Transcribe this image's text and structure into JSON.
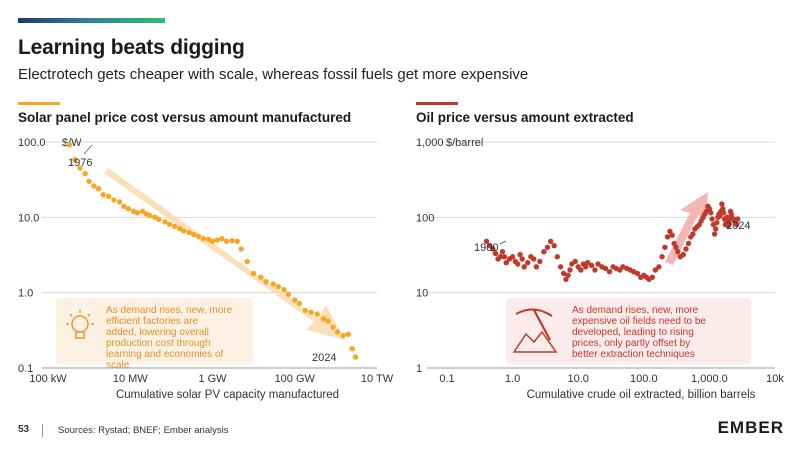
{
  "header": {
    "title": "Learning beats digging",
    "subtitle": "Electrotech gets cheaper with scale, whereas fossil fuels get more expensive"
  },
  "footer": {
    "page_number": "53",
    "sources": "Sources: Rystad; BNEF; Ember analysis",
    "logo": "EMBER"
  },
  "colors": {
    "solar": "#f5a623",
    "solar_arrow": "#f8d7a4",
    "oil": "#c0392b",
    "oil_arrow": "#f0a4a0",
    "callout_bg": "#fdf1e4",
    "callout_oil_bg": "#fbeceb"
  },
  "icons": {
    "solar_callout": "lightbulb-icon",
    "oil_callout": "pickaxe-icon"
  },
  "chart_data": [
    {
      "type": "scatter",
      "title": "Solar panel price cost versus amount manufactured",
      "xlabel": "Cumulative solar PV capacity manufactured",
      "ylabel": "$/W",
      "x_scale": "log",
      "y_scale": "log",
      "xlim_gw": [
        0.0001,
        10000
      ],
      "ylim": [
        0.1,
        100
      ],
      "x_ticks": [
        0.0001,
        0.01,
        1,
        100,
        10000
      ],
      "x_tick_labels": [
        "100 kW",
        "10 MW",
        "1 GW",
        "100 GW",
        "10 TW"
      ],
      "y_ticks": [
        0.1,
        1,
        10,
        100
      ],
      "y_tick_labels": [
        "0.1",
        "1.0",
        "10.0",
        "100.0"
      ],
      "grid": "horizontal",
      "annotations": [
        "1976",
        "2024"
      ],
      "callout": "As demand rises, new, more efficient factories are added, lowering overall production cost through learning and economies of scale",
      "points_gw_usdw": [
        [
          0.00033,
          92
        ],
        [
          0.00045,
          58
        ],
        [
          0.0006,
          45
        ],
        [
          0.0008,
          38
        ],
        [
          0.001,
          30
        ],
        [
          0.0013,
          26
        ],
        [
          0.0017,
          24
        ],
        [
          0.0022,
          20
        ],
        [
          0.003,
          19
        ],
        [
          0.004,
          17
        ],
        [
          0.0055,
          16
        ],
        [
          0.007,
          14
        ],
        [
          0.009,
          13
        ],
        [
          0.012,
          12
        ],
        [
          0.015,
          11.5
        ],
        [
          0.02,
          12
        ],
        [
          0.025,
          11
        ],
        [
          0.03,
          10.5
        ],
        [
          0.04,
          10
        ],
        [
          0.05,
          9.4
        ],
        [
          0.07,
          8.7
        ],
        [
          0.09,
          8.1
        ],
        [
          0.12,
          7.6
        ],
        [
          0.16,
          7.1
        ],
        [
          0.2,
          6.6
        ],
        [
          0.27,
          6.3
        ],
        [
          0.35,
          5.9
        ],
        [
          0.45,
          5.6
        ],
        [
          0.6,
          5.2
        ],
        [
          0.8,
          5.1
        ],
        [
          1.0,
          4.8
        ],
        [
          1.3,
          5.0
        ],
        [
          1.7,
          5.2
        ],
        [
          2.2,
          4.8
        ],
        [
          3.0,
          4.9
        ],
        [
          4.0,
          4.8
        ],
        [
          5.0,
          3.8
        ],
        [
          7.0,
          2.6
        ],
        [
          10,
          1.8
        ],
        [
          15,
          1.6
        ],
        [
          20,
          1.4
        ],
        [
          30,
          1.3
        ],
        [
          40,
          1.2
        ],
        [
          55,
          1.1
        ],
        [
          70,
          0.95
        ],
        [
          100,
          0.8
        ],
        [
          130,
          0.72
        ],
        [
          180,
          0.58
        ],
        [
          250,
          0.55
        ],
        [
          350,
          0.52
        ],
        [
          500,
          0.45
        ],
        [
          650,
          0.42
        ],
        [
          850,
          0.35
        ],
        [
          1100,
          0.3
        ],
        [
          1500,
          0.27
        ],
        [
          2000,
          0.28
        ],
        [
          2500,
          0.18
        ],
        [
          3000,
          0.14
        ]
      ]
    },
    {
      "type": "scatter",
      "title": "Oil price versus amount extracted",
      "xlabel": "Cumulative crude oil extracted, billion barrels",
      "ylabel": "$/barrel",
      "x_scale": "log",
      "y_scale": "log",
      "xlim": [
        0.1,
        10000
      ],
      "ylim": [
        1,
        1000
      ],
      "x_ticks": [
        0.1,
        1,
        10,
        100,
        1000,
        10000
      ],
      "x_tick_labels": [
        "0.1",
        "1.0",
        "10.0",
        "100.0",
        "1,000.0",
        "10k"
      ],
      "y_ticks": [
        1,
        10,
        100,
        1000
      ],
      "y_tick_labels": [
        "1",
        "10",
        "100",
        "1,000"
      ],
      "grid": "horizontal",
      "annotations": [
        "1900",
        "2024"
      ],
      "callout": "As demand rises, new, more expensive oil fields need to be developed, leading to rising prices, only partly offset by better extraction techniques",
      "points_bbl_usd": [
        [
          0.4,
          48
        ],
        [
          0.45,
          42
        ],
        [
          0.5,
          38
        ],
        [
          0.55,
          33
        ],
        [
          0.6,
          28
        ],
        [
          0.65,
          30
        ],
        [
          0.7,
          35
        ],
        [
          0.75,
          30
        ],
        [
          0.8,
          25
        ],
        [
          0.9,
          28
        ],
        [
          1.0,
          30
        ],
        [
          1.1,
          26
        ],
        [
          1.2,
          24
        ],
        [
          1.3,
          32
        ],
        [
          1.4,
          28
        ],
        [
          1.5,
          22
        ],
        [
          1.7,
          25
        ],
        [
          1.9,
          30
        ],
        [
          2.1,
          28
        ],
        [
          2.3,
          22
        ],
        [
          2.6,
          26
        ],
        [
          3.0,
          35
        ],
        [
          3.4,
          40
        ],
        [
          3.8,
          48
        ],
        [
          4.3,
          42
        ],
        [
          4.8,
          30
        ],
        [
          5.4,
          22
        ],
        [
          6.0,
          18
        ],
        [
          6.5,
          15
        ],
        [
          7.0,
          17
        ],
        [
          7.5,
          20
        ],
        [
          8,
          24
        ],
        [
          9,
          26
        ],
        [
          10,
          22
        ],
        [
          11,
          20
        ],
        [
          12,
          24
        ],
        [
          13,
          22
        ],
        [
          14,
          25
        ],
        [
          16,
          23
        ],
        [
          18,
          20
        ],
        [
          20,
          24
        ],
        [
          23,
          22
        ],
        [
          26,
          21
        ],
        [
          30,
          19
        ],
        [
          34,
          22
        ],
        [
          38,
          21
        ],
        [
          43,
          20
        ],
        [
          48,
          22
        ],
        [
          55,
          21
        ],
        [
          62,
          20
        ],
        [
          70,
          19
        ],
        [
          80,
          18
        ],
        [
          90,
          16
        ],
        [
          100,
          17
        ],
        [
          110,
          16
        ],
        [
          120,
          15
        ],
        [
          135,
          16
        ],
        [
          150,
          20
        ],
        [
          170,
          22
        ],
        [
          190,
          30
        ],
        [
          210,
          40
        ],
        [
          230,
          55
        ],
        [
          250,
          65
        ],
        [
          270,
          58
        ],
        [
          290,
          45
        ],
        [
          310,
          40
        ],
        [
          330,
          35
        ],
        [
          360,
          30
        ],
        [
          400,
          32
        ],
        [
          440,
          38
        ],
        [
          480,
          45
        ],
        [
          520,
          55
        ],
        [
          560,
          60
        ],
        [
          600,
          70
        ],
        [
          650,
          75
        ],
        [
          700,
          80
        ],
        [
          750,
          90
        ],
        [
          800,
          100
        ],
        [
          850,
          110
        ],
        [
          900,
          120
        ],
        [
          950,
          140
        ],
        [
          1000,
          130
        ],
        [
          1050,
          115
        ],
        [
          1100,
          95
        ],
        [
          1150,
          80
        ],
        [
          1200,
          60
        ],
        [
          1250,
          70
        ],
        [
          1300,
          85
        ],
        [
          1350,
          100
        ],
        [
          1400,
          110
        ],
        [
          1450,
          105
        ],
        [
          1500,
          120
        ],
        [
          1550,
          150
        ],
        [
          1600,
          130
        ],
        [
          1650,
          115
        ],
        [
          1700,
          95
        ],
        [
          1750,
          80
        ],
        [
          1800,
          90
        ],
        [
          1850,
          100
        ],
        [
          1900,
          85
        ],
        [
          1950,
          78
        ],
        [
          2000,
          82
        ],
        [
          2050,
          95
        ],
        [
          2100,
          120
        ],
        [
          2150,
          110
        ],
        [
          2200,
          100
        ],
        [
          2300,
          95
        ],
        [
          2400,
          90
        ],
        [
          2500,
          88
        ],
        [
          2600,
          80
        ],
        [
          2700,
          95
        ]
      ]
    }
  ]
}
